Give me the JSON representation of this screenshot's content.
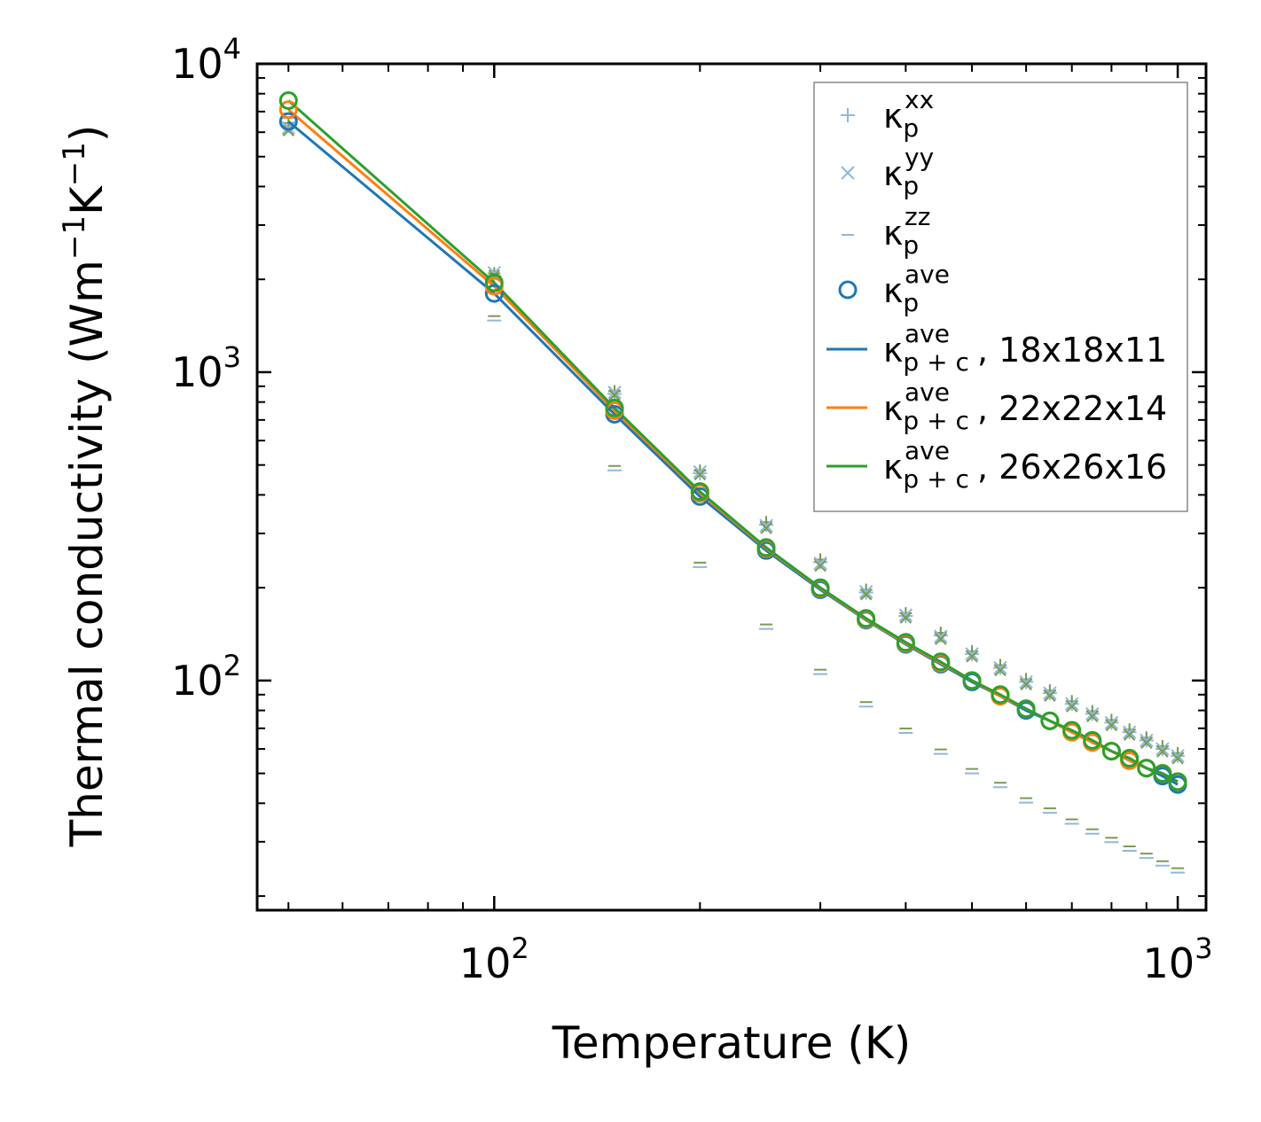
{
  "chart_data": {
    "type": "scatter",
    "xlabel": "Temperature (K)",
    "ylabel_parts": [
      "Thermal conductivity (Wm",
      "−1",
      "K",
      "−1",
      ")"
    ],
    "xscale": "log",
    "yscale": "log",
    "xlim": [
      45,
      1100
    ],
    "ylim": [
      18,
      10000
    ],
    "x_ticks": [
      {
        "value": 100,
        "base": "10",
        "exp": "2"
      },
      {
        "value": 1000,
        "base": "10",
        "exp": "3"
      }
    ],
    "y_ticks": [
      {
        "value": 100,
        "base": "10",
        "exp": "2"
      },
      {
        "value": 1000,
        "base": "10",
        "exp": "3"
      },
      {
        "value": 10000,
        "base": "10",
        "exp": "4"
      }
    ],
    "x": [
      50,
      100,
      150,
      200,
      250,
      300,
      350,
      400,
      450,
      500,
      550,
      600,
      650,
      700,
      750,
      800,
      850,
      900,
      950,
      1000
    ],
    "series": [
      {
        "name": "κ_p^xx",
        "kind": "plus",
        "values": [
          6300,
          2050,
          850,
          470,
          320,
          242,
          193,
          162,
          140,
          122,
          110,
          99,
          91,
          84,
          78,
          73,
          68,
          64,
          60,
          57
        ]
      },
      {
        "name": "κ_p^yy",
        "kind": "cross",
        "values": [
          6200,
          2100,
          860,
          475,
          318,
          240,
          194,
          163,
          139,
          122,
          110,
          99,
          91,
          84,
          78,
          73,
          68,
          64,
          60,
          57
        ]
      },
      {
        "name": "κ_p^zz",
        "kind": "dash",
        "values": [
          6800,
          1500,
          490,
          238,
          150,
          107,
          84,
          69,
          59,
          51,
          46,
          41,
          38,
          35,
          32.5,
          30.5,
          28.6,
          27.1,
          25.6,
          24.3
        ]
      },
      {
        "name": "κ_p^ave",
        "kind": "circle",
        "values": [
          6500,
          1800,
          730,
          395,
          264,
          197,
          157,
          131,
          113,
          99,
          89,
          80,
          74,
          68,
          63,
          59,
          55,
          52,
          49,
          46
        ]
      },
      {
        "name": "κ_{p+c}^ave, 18x18x11",
        "kind": "line+circle",
        "values": [
          6500,
          1800,
          730,
          395,
          264,
          197,
          157,
          131,
          113,
          99,
          89,
          80,
          74,
          68,
          63,
          59,
          55,
          52,
          49,
          46
        ]
      },
      {
        "name": "κ_{p+c}^ave, 22x22x14",
        "kind": "line+circle",
        "values": [
          7100,
          1900,
          750,
          405,
          268,
          199,
          158,
          132,
          114,
          100,
          89,
          81,
          74,
          68,
          63,
          59,
          55,
          52,
          50,
          47
        ]
      },
      {
        "name": "κ_{p+c}^ave, 26x26x16",
        "kind": "line+circle",
        "values": [
          7600,
          1950,
          765,
          410,
          270,
          200,
          159,
          133,
          115,
          100,
          90,
          81,
          74,
          69,
          64,
          59,
          56,
          52,
          50,
          47
        ]
      }
    ],
    "colors": {
      "blue": "#1f77b4",
      "orange": "#ff7f0e",
      "green": "#2ca02c",
      "light_blue": "#8fb8da",
      "grey": "#808080"
    },
    "legend": {
      "position": "top-right",
      "items": [
        {
          "symbol": "plus",
          "color": "#8fb8da",
          "base": "κ",
          "sup": "xx",
          "sub": "p",
          "suffix": ""
        },
        {
          "symbol": "cross",
          "color": "#8fb8da",
          "base": "κ",
          "sup": "yy",
          "sub": "p",
          "suffix": ""
        },
        {
          "symbol": "dash",
          "color": "#8fb8da",
          "base": "κ",
          "sup": "zz",
          "sub": "p",
          "suffix": ""
        },
        {
          "symbol": "circle",
          "color": "#1f77b4",
          "base": "κ",
          "sup": "ave",
          "sub": "p",
          "suffix": ""
        },
        {
          "symbol": "line",
          "color": "#1f77b4",
          "base": "κ",
          "sup": "ave",
          "sub": "p + c",
          "suffix": ", 18x18x11"
        },
        {
          "symbol": "line",
          "color": "#ff7f0e",
          "base": "κ",
          "sup": "ave",
          "sub": "p + c",
          "suffix": ", 22x22x14"
        },
        {
          "symbol": "line",
          "color": "#2ca02c",
          "base": "κ",
          "sup": "ave",
          "sub": "p + c",
          "suffix": ", 26x26x16"
        }
      ]
    }
  }
}
